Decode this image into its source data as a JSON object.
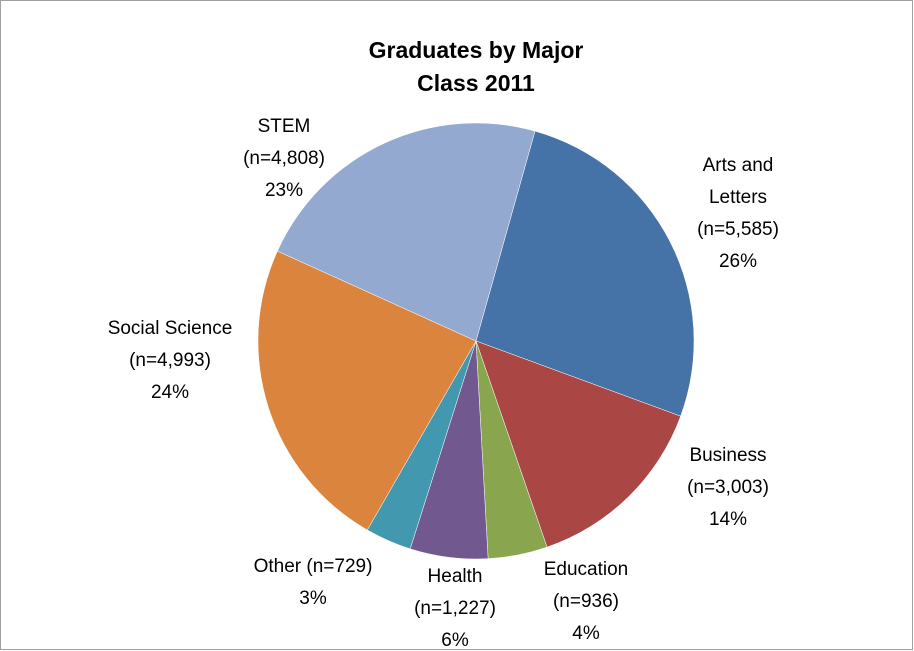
{
  "chart_data": {
    "type": "pie",
    "title": "Graduates by Major",
    "subtitle": "Class 2011",
    "categories": [
      "Arts and Letters",
      "Business",
      "Education",
      "Health",
      "Other",
      "Social Science",
      "STEM"
    ],
    "values": [
      5585,
      3003,
      936,
      1227,
      729,
      4993,
      4808
    ],
    "value_labels": [
      "(n=5,585)",
      "(n=3,003)",
      "(n=936)",
      "(n=1,227)",
      "(n=729)",
      "(n=4,993)",
      "(n=4,808)"
    ],
    "percent_labels": [
      "26%",
      "14%",
      "4%",
      "6%",
      "3%",
      "24%",
      "23%"
    ],
    "colors": [
      "#4572a7",
      "#aa4643",
      "#89a54e",
      "#71588f",
      "#4198af",
      "#db843d",
      "#93a9cf"
    ]
  }
}
